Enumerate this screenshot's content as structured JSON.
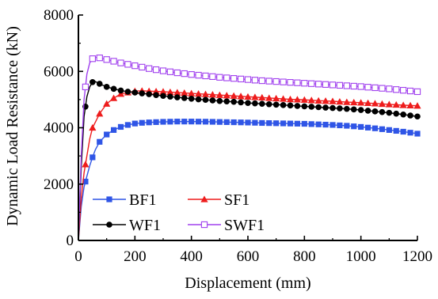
{
  "chart_data": {
    "type": "line",
    "xlabel": "Displacement (mm)",
    "ylabel": "Dynamic Load Resistance (kN)",
    "xlim": [
      0,
      1200
    ],
    "ylim": [
      0,
      8000
    ],
    "x_ticks": [
      "0",
      "200",
      "400",
      "600",
      "800",
      "1000",
      "1200"
    ],
    "y_ticks": [
      "0",
      "2000",
      "4000",
      "6000",
      "8000"
    ],
    "grid": false,
    "legend_position": "bottom-left",
    "series": [
      {
        "name": "BF1",
        "color": "#2f55e6",
        "marker": "square-filled",
        "x": [
          0,
          10,
          20,
          30,
          40,
          50,
          60,
          75,
          100,
          125,
          150,
          175,
          200,
          225,
          250,
          300,
          350,
          400,
          450,
          500,
          550,
          600,
          650,
          700,
          750,
          800,
          850,
          900,
          950,
          1000,
          1050,
          1100,
          1150,
          1200
        ],
        "values": [
          0,
          1200,
          1900,
          2280,
          2650,
          2950,
          3220,
          3500,
          3760,
          3920,
          4030,
          4100,
          4150,
          4175,
          4190,
          4210,
          4220,
          4220,
          4215,
          4205,
          4195,
          4185,
          4170,
          4160,
          4150,
          4140,
          4120,
          4100,
          4070,
          4030,
          3980,
          3920,
          3860,
          3790
        ]
      },
      {
        "name": "SF1",
        "color": "#ee1c1c",
        "marker": "triangle-filled",
        "x": [
          0,
          10,
          20,
          30,
          40,
          50,
          60,
          75,
          100,
          125,
          150,
          175,
          200,
          225,
          250,
          300,
          350,
          400,
          450,
          500,
          550,
          600,
          650,
          700,
          750,
          800,
          850,
          900,
          950,
          1000,
          1050,
          1100,
          1150,
          1200
        ],
        "values": [
          0,
          1500,
          2400,
          3000,
          3600,
          4000,
          4200,
          4500,
          4850,
          5050,
          5200,
          5250,
          5300,
          5310,
          5300,
          5280,
          5250,
          5220,
          5190,
          5160,
          5130,
          5100,
          5070,
          5040,
          5010,
          4990,
          4960,
          4940,
          4910,
          4890,
          4860,
          4830,
          4800,
          4780
        ]
      },
      {
        "name": "WF1",
        "color": "#000000",
        "marker": "circle-filled",
        "x": [
          0,
          10,
          20,
          30,
          40,
          50,
          60,
          75,
          100,
          125,
          150,
          175,
          200,
          225,
          250,
          300,
          350,
          400,
          450,
          500,
          550,
          600,
          650,
          700,
          750,
          800,
          850,
          900,
          950,
          1000,
          1050,
          1100,
          1150,
          1200
        ],
        "values": [
          0,
          2600,
          4400,
          5100,
          5450,
          5620,
          5640,
          5560,
          5450,
          5380,
          5320,
          5280,
          5250,
          5220,
          5190,
          5130,
          5080,
          5030,
          4990,
          4950,
          4920,
          4880,
          4850,
          4820,
          4790,
          4760,
          4730,
          4700,
          4670,
          4630,
          4580,
          4530,
          4470,
          4400
        ]
      },
      {
        "name": "SWF1",
        "color": "#a040ee",
        "marker": "square-open",
        "x": [
          0,
          10,
          20,
          30,
          40,
          50,
          60,
          75,
          100,
          125,
          150,
          175,
          200,
          225,
          250,
          300,
          350,
          400,
          450,
          500,
          550,
          600,
          650,
          700,
          750,
          800,
          850,
          900,
          950,
          1000,
          1050,
          1100,
          1150,
          1200
        ],
        "values": [
          0,
          3000,
          5000,
          5900,
          6300,
          6450,
          6500,
          6480,
          6420,
          6360,
          6300,
          6250,
          6200,
          6150,
          6100,
          6020,
          5950,
          5890,
          5840,
          5790,
          5750,
          5710,
          5670,
          5640,
          5610,
          5580,
          5550,
          5520,
          5490,
          5460,
          5420,
          5380,
          5330,
          5280
        ]
      }
    ]
  }
}
